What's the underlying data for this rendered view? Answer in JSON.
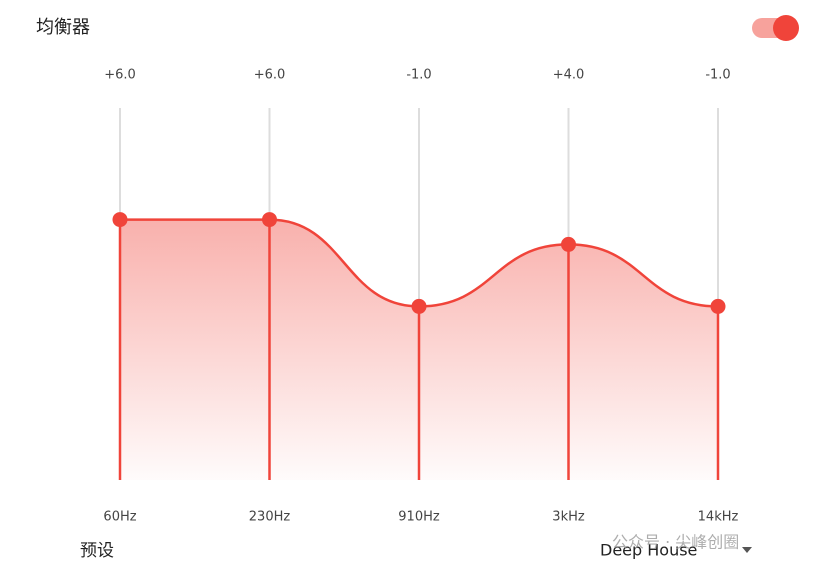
{
  "header": {
    "title": "均衡器",
    "toggle_on": true
  },
  "chart_data": {
    "type": "area",
    "categories": [
      "60Hz",
      "230Hz",
      "910Hz",
      "3kHz",
      "14kHz"
    ],
    "values": [
      6,
      6,
      -1,
      4,
      -1
    ],
    "value_labels": [
      "+6.0",
      "+6.0",
      "-1.0",
      "+4.0",
      "-1.0"
    ],
    "ylim": [
      -15,
      15
    ],
    "color": "#f0443a"
  },
  "preset": {
    "label": "预设",
    "value": "Deep House"
  },
  "watermark": "公众号 · 尖峰创圈"
}
